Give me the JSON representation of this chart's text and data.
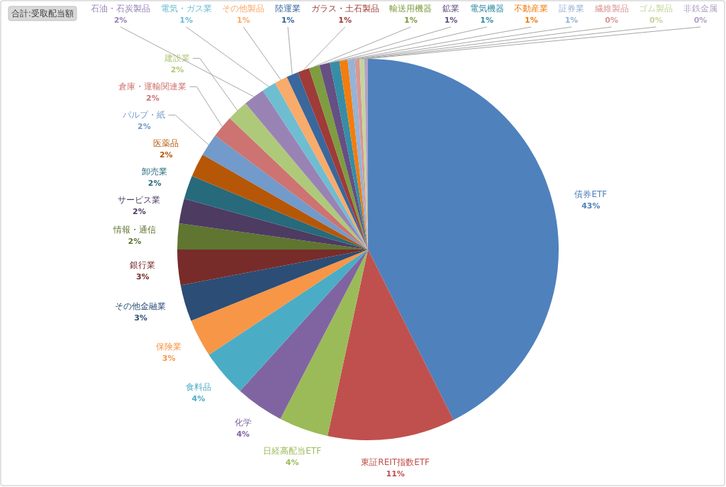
{
  "chart_data": {
    "type": "pie",
    "title": "合計:受取配当額",
    "categories": [
      "債券ETF",
      "東証REIT指数ETF",
      "日経高配当ETF",
      "化学",
      "食料品",
      "保険業",
      "その他金融業",
      "銀行業",
      "情報・通信",
      "サービス業",
      "卸売業",
      "医薬品",
      "パルプ・紙",
      "倉庫・運輸関連業",
      "建設業",
      "石油・石炭製品",
      "電気・ガス業",
      "その他製品",
      "陸運業",
      "ガラス・土石製品",
      "輸送用機器",
      "鉱業",
      "電気機器",
      "不動産業",
      "証券業",
      "繊維製品",
      "ゴム製品",
      "非鉄金属"
    ],
    "values": [
      42.6,
      10.8,
      4.2,
      4.1,
      4.0,
      3.2,
      3.1,
      3.0,
      2.2,
      2.1,
      2.0,
      2.0,
      1.9,
      1.9,
      1.8,
      1.8,
      1.2,
      1.1,
      1.0,
      1.0,
      0.9,
      0.9,
      0.8,
      0.7,
      0.6,
      0.4,
      0.4,
      0.3
    ],
    "value_labels": [
      "43%",
      "11%",
      "4%",
      "4%",
      "4%",
      "3%",
      "3%",
      "3%",
      "2%",
      "2%",
      "2%",
      "2%",
      "2%",
      "2%",
      "2%",
      "2%",
      "1%",
      "1%",
      "1%",
      "1%",
      "1%",
      "1%",
      "1%",
      "1%",
      "1%",
      "0%",
      "0%",
      "0%"
    ],
    "colors": [
      "#4f81bd",
      "#c0504d",
      "#9bbb59",
      "#8064a2",
      "#4bacc6",
      "#f79646",
      "#2c4d75",
      "#772c2a",
      "#5f7530",
      "#4d3b62",
      "#276a7c",
      "#b65708",
      "#729aca",
      "#cd7371",
      "#afc97a",
      "#9983b5",
      "#6fbdd1",
      "#f9ab6b",
      "#3a679c",
      "#9f3b38",
      "#7e9d40",
      "#664f82",
      "#358ea6",
      "#f37d0e",
      "#95b3d7",
      "#d99795",
      "#c3d69b",
      "#b3a2c7"
    ]
  }
}
